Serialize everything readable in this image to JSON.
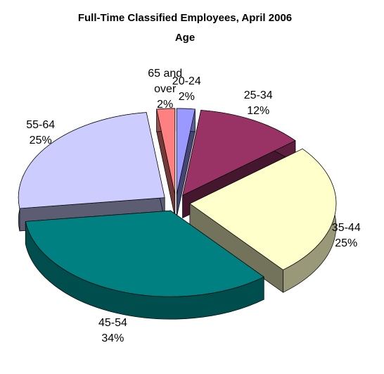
{
  "chart_data": {
    "type": "pie3d",
    "title": "Full-Time Classified Employees, April 2006",
    "subtitle": "Age",
    "categories": [
      "20-24",
      "25-34",
      "35-44",
      "45-54",
      "55-64",
      "65 and over"
    ],
    "values": [
      2,
      12,
      25,
      34,
      25,
      2
    ],
    "value_labels": [
      "2%",
      "12%",
      "25%",
      "34%",
      "25%",
      "2%"
    ],
    "colors": [
      "#9999ff",
      "#993366",
      "#ffffcc",
      "#008080",
      "#ccccff",
      "#ff8080"
    ]
  }
}
